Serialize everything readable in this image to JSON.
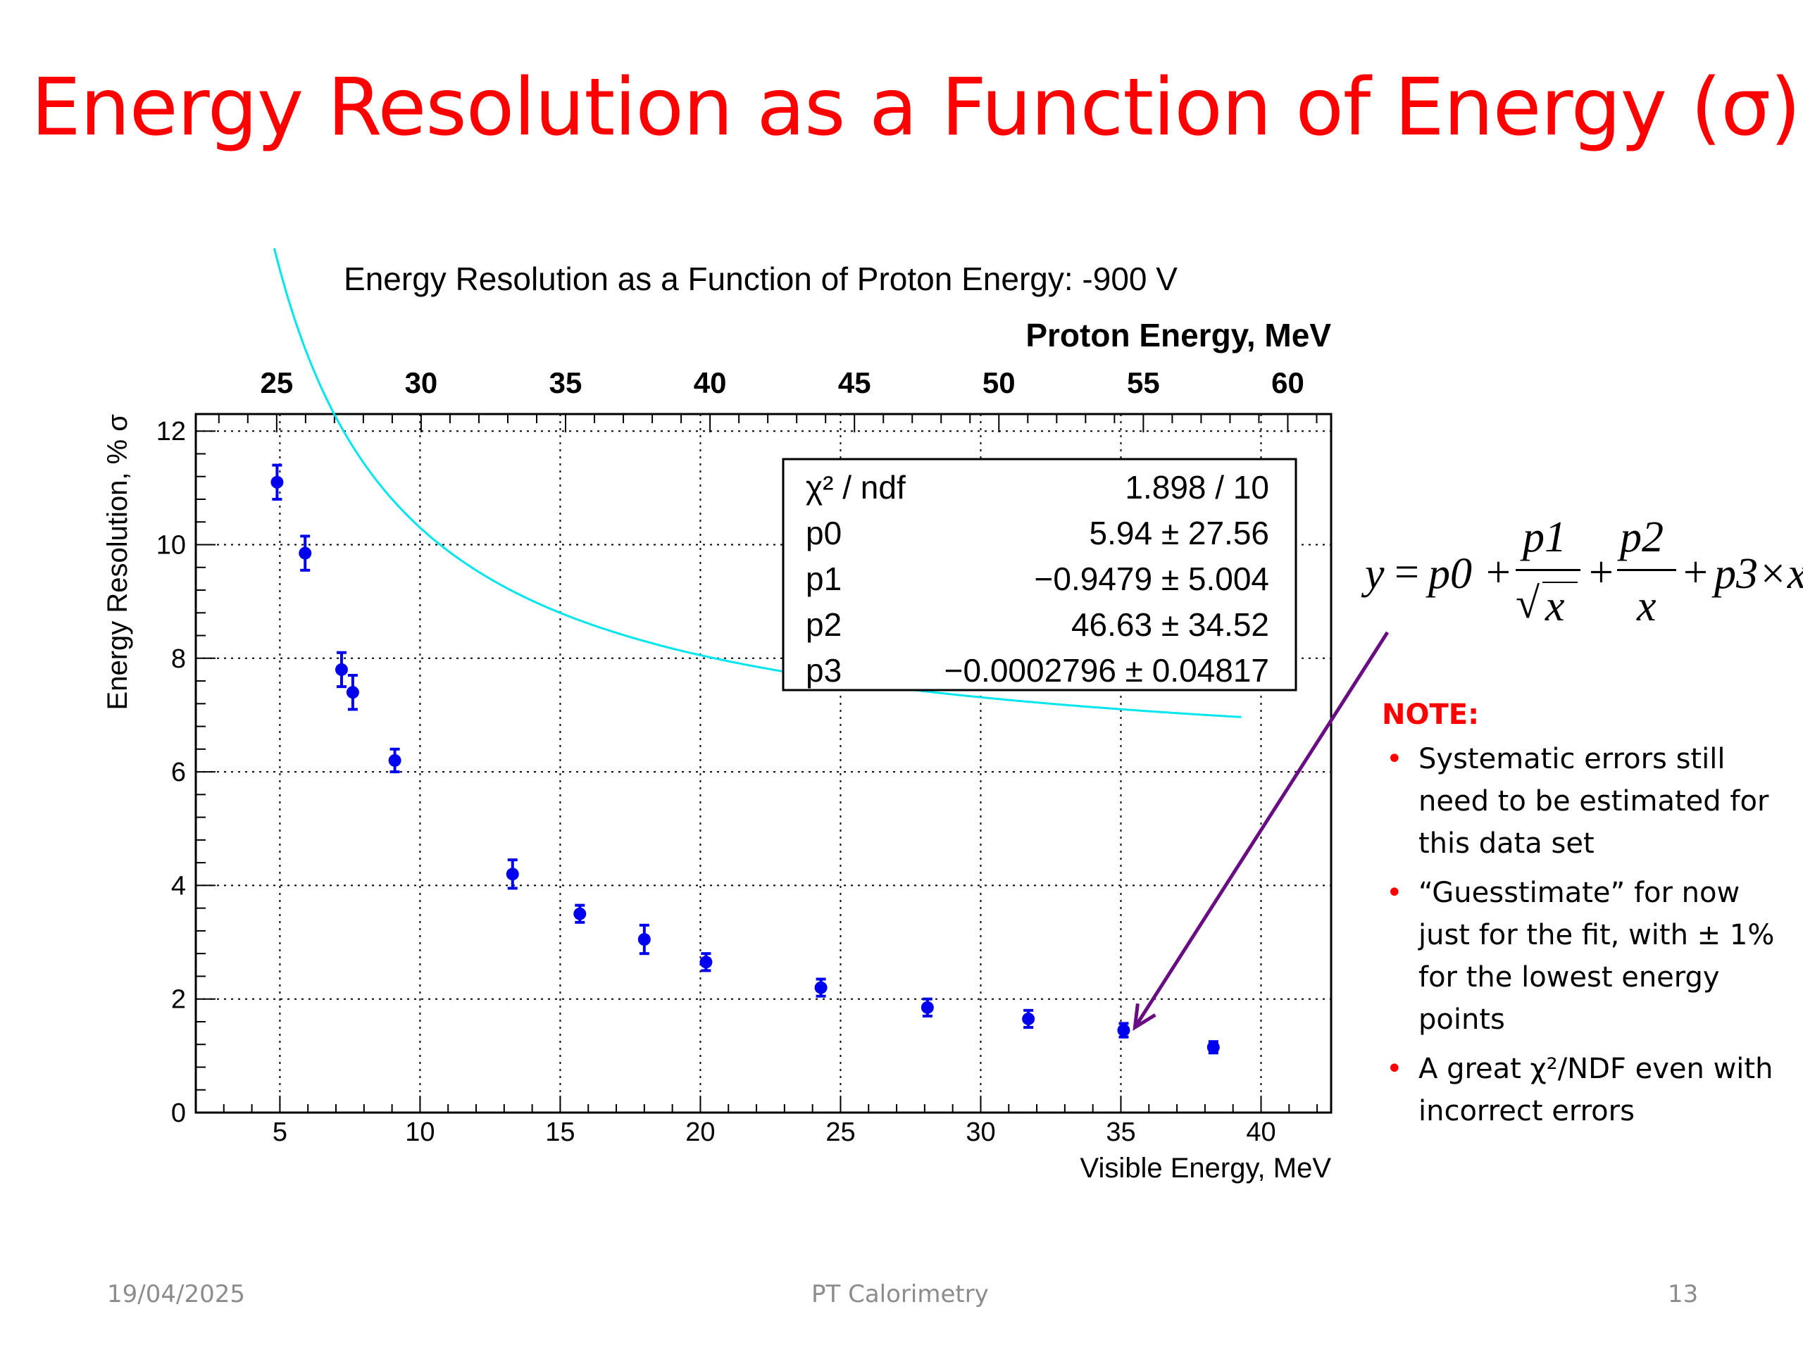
{
  "slide": {
    "title": "Energy Resolution as a Function of Energy (σ)",
    "footer_date": "19/04/2025",
    "footer_center": "PT Calorimetry",
    "page_number": "13"
  },
  "formula": {
    "y": "y",
    "eq": "=",
    "p0": "p0",
    "plus": "+",
    "p1": "p1",
    "sqrt": "√",
    "x": "x",
    "p2": "p2",
    "p3x": "p3×x"
  },
  "note": {
    "heading": "NOTE:",
    "bullet": "•",
    "items": [
      "Systematic errors still need to be estimated for this data set",
      "“Guesstimate” for now just for the fit, with ± 1% for the lowest energy points",
      "A great χ²/NDF even with incorrect errors"
    ]
  },
  "chart_data": {
    "type": "scatter",
    "title": "Energy Resolution as a Function of Proton Energy: -900 V",
    "xlabel": "Visible Energy, MeV",
    "ylabel": "Energy Resolution, % σ",
    "x2label": "Proton Energy, MeV",
    "xlim": [
      2,
      42.5
    ],
    "ylim": [
      0,
      12.3
    ],
    "x2lim": [
      22.2,
      61.5
    ],
    "xticks": [
      5,
      10,
      15,
      20,
      25,
      30,
      35,
      40
    ],
    "yticks": [
      0,
      2,
      4,
      6,
      8,
      10,
      12
    ],
    "x2ticks": [
      25,
      30,
      35,
      40,
      45,
      50,
      55,
      60
    ],
    "grid": true,
    "colors": {
      "points": "#0000ee",
      "fit": "#00e5ee",
      "arrow": "#6a0d83",
      "title": "#ff0000"
    },
    "points": [
      {
        "x": 4.9,
        "y": 11.1,
        "err": 0.3
      },
      {
        "x": 5.9,
        "y": 9.85,
        "err": 0.3
      },
      {
        "x": 7.2,
        "y": 7.8,
        "err": 0.3
      },
      {
        "x": 7.6,
        "y": 7.4,
        "err": 0.3
      },
      {
        "x": 9.1,
        "y": 6.2,
        "err": 0.2
      },
      {
        "x": 13.3,
        "y": 4.2,
        "err": 0.25
      },
      {
        "x": 15.7,
        "y": 3.5,
        "err": 0.15
      },
      {
        "x": 18.0,
        "y": 3.05,
        "err": 0.25
      },
      {
        "x": 20.2,
        "y": 2.65,
        "err": 0.15
      },
      {
        "x": 24.3,
        "y": 2.2,
        "err": 0.15
      },
      {
        "x": 28.1,
        "y": 1.85,
        "err": 0.15
      },
      {
        "x": 31.7,
        "y": 1.65,
        "err": 0.15
      },
      {
        "x": 35.1,
        "y": 1.45,
        "err": 0.12
      },
      {
        "x": 38.3,
        "y": 1.15,
        "err": 0.1
      }
    ],
    "fit": {
      "range": [
        4.8,
        39.3
      ],
      "params": [
        5.94,
        -0.9479,
        46.63,
        -0.0002796
      ]
    },
    "stats_box": {
      "rows": [
        {
          "label": "χ² / ndf",
          "value": "1.898 / 10"
        },
        {
          "label": "p0",
          "value": "5.94 ± 27.56"
        },
        {
          "label": "p1",
          "value": "−0.9479 ± 5.004"
        },
        {
          "label": "p2",
          "value": "46.63 ± 34.52"
        },
        {
          "label": "p3",
          "value": "−0.0002796 ± 0.04817"
        }
      ]
    }
  }
}
